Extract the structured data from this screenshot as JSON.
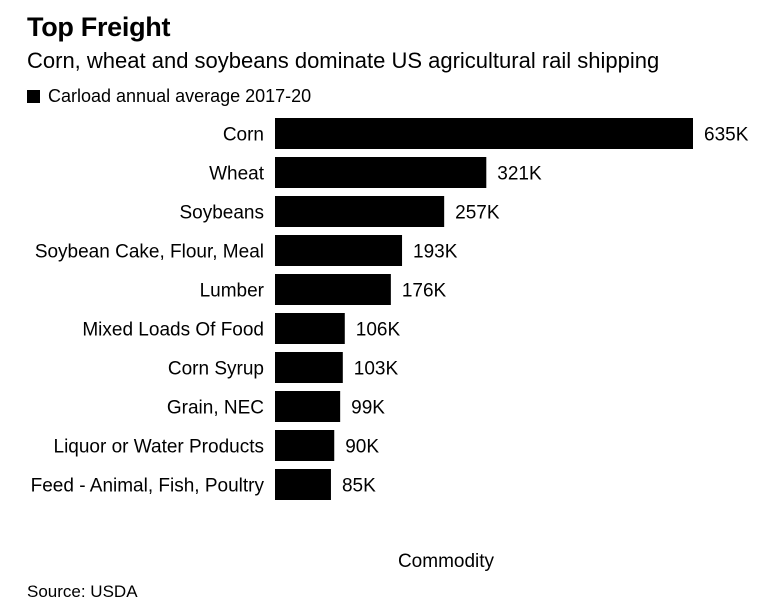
{
  "chart_data": {
    "type": "bar",
    "orientation": "horizontal",
    "title": "Top Freight",
    "subtitle": "Corn, wheat and soybeans dominate US agricultural rail shipping",
    "legend": [
      {
        "label": "Carload annual average 2017-20",
        "color": "#000000"
      }
    ],
    "legend_position": "top-left",
    "categories": [
      "Corn",
      "Wheat",
      "Soybeans",
      "Soybean Cake, Flour, Meal",
      "Lumber",
      "Mixed Loads Of Food",
      "Corn Syrup",
      "Grain, NEC",
      "Liquor or Water Products",
      "Feed - Animal, Fish, Poultry"
    ],
    "values": [
      635,
      321,
      257,
      193,
      176,
      106,
      103,
      99,
      90,
      85
    ],
    "value_labels": [
      "635K",
      "321K",
      "257K",
      "193K",
      "176K",
      "106K",
      "103K",
      "99K",
      "90K",
      "85K"
    ],
    "xlabel": "Commodity",
    "ylabel": "",
    "xlim": [
      0,
      635
    ],
    "grid": false,
    "bar_color": "#000000"
  },
  "source": "Source: USDA"
}
